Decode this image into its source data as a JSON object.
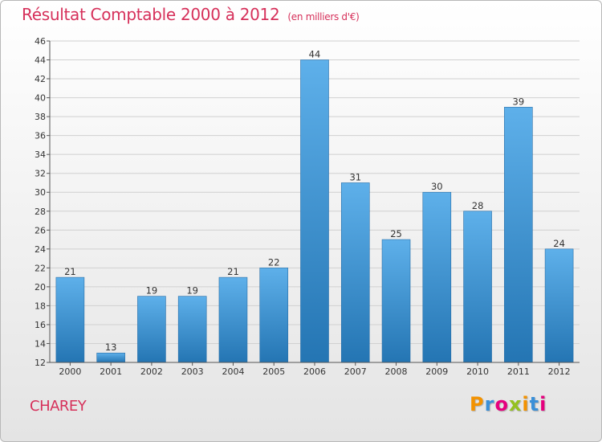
{
  "chart_data": {
    "type": "bar",
    "title": "Résultat Comptable 2000 à 2012",
    "subtitle": "(en milliers d'€)",
    "categories": [
      "2000",
      "2001",
      "2002",
      "2003",
      "2004",
      "2005",
      "2006",
      "2007",
      "2008",
      "2009",
      "2010",
      "2011",
      "2012"
    ],
    "values": [
      21,
      13,
      19,
      19,
      21,
      22,
      44,
      31,
      25,
      30,
      28,
      39,
      24
    ],
    "ylim": [
      12,
      46
    ],
    "yticks": [
      12,
      14,
      16,
      18,
      20,
      22,
      24,
      26,
      28,
      30,
      32,
      34,
      36,
      38,
      40,
      42,
      44,
      46
    ],
    "grid": true,
    "xlabel": "",
    "ylabel": ""
  },
  "commune": "CHAREY",
  "logo": {
    "letters": [
      "P",
      "r",
      "o",
      "x",
      "i",
      "t",
      "i"
    ]
  },
  "colors": {
    "title": "#d6305a",
    "bar_top": "#5eb0ea",
    "bar_bottom": "#2475b3",
    "logo": [
      "#f39200",
      "#3a8fd8",
      "#e6007e",
      "#95c11f",
      "#f39200",
      "#3a8fd8",
      "#e6007e"
    ]
  }
}
